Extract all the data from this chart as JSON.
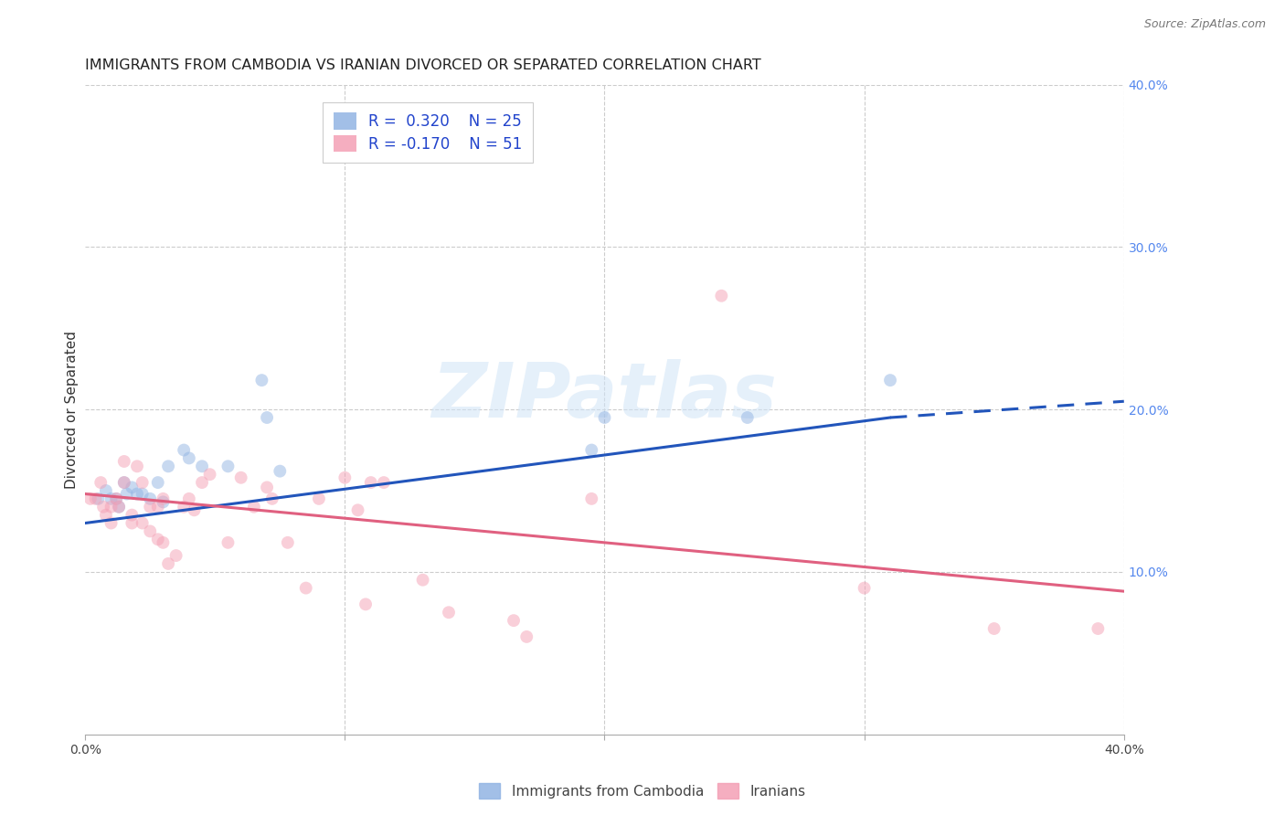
{
  "title": "IMMIGRANTS FROM CAMBODIA VS IRANIAN DIVORCED OR SEPARATED CORRELATION CHART",
  "source": "Source: ZipAtlas.com",
  "ylabel": "Divorced or Separated",
  "xlim": [
    0.0,
    0.4
  ],
  "ylim": [
    0.0,
    0.4
  ],
  "xtick_vals": [
    0.0,
    0.1,
    0.2,
    0.3,
    0.4
  ],
  "xtick_show": [
    0.0,
    0.4
  ],
  "ytick_vals_right": [
    0.1,
    0.2,
    0.3,
    0.4
  ],
  "ytick_labels_right": [
    "10.0%",
    "20.0%",
    "30.0%",
    "40.0%"
  ],
  "watermark": "ZIPatlas",
  "legend_label_blue": "Immigrants from Cambodia",
  "legend_label_pink": "Iranians",
  "blue_color": "#92b4e3",
  "pink_color": "#f4a0b5",
  "blue_line_color": "#2255bb",
  "pink_line_color": "#e06080",
  "blue_scatter": [
    [
      0.005,
      0.145
    ],
    [
      0.008,
      0.15
    ],
    [
      0.01,
      0.145
    ],
    [
      0.012,
      0.145
    ],
    [
      0.013,
      0.14
    ],
    [
      0.015,
      0.155
    ],
    [
      0.016,
      0.148
    ],
    [
      0.018,
      0.152
    ],
    [
      0.02,
      0.148
    ],
    [
      0.022,
      0.148
    ],
    [
      0.025,
      0.145
    ],
    [
      0.028,
      0.155
    ],
    [
      0.03,
      0.143
    ],
    [
      0.032,
      0.165
    ],
    [
      0.038,
      0.175
    ],
    [
      0.04,
      0.17
    ],
    [
      0.045,
      0.165
    ],
    [
      0.055,
      0.165
    ],
    [
      0.068,
      0.218
    ],
    [
      0.07,
      0.195
    ],
    [
      0.075,
      0.162
    ],
    [
      0.195,
      0.175
    ],
    [
      0.2,
      0.195
    ],
    [
      0.255,
      0.195
    ],
    [
      0.31,
      0.218
    ]
  ],
  "pink_scatter": [
    [
      0.002,
      0.145
    ],
    [
      0.004,
      0.145
    ],
    [
      0.006,
      0.155
    ],
    [
      0.007,
      0.14
    ],
    [
      0.008,
      0.135
    ],
    [
      0.01,
      0.13
    ],
    [
      0.01,
      0.14
    ],
    [
      0.012,
      0.145
    ],
    [
      0.013,
      0.14
    ],
    [
      0.015,
      0.168
    ],
    [
      0.015,
      0.155
    ],
    [
      0.018,
      0.13
    ],
    [
      0.018,
      0.135
    ],
    [
      0.02,
      0.165
    ],
    [
      0.022,
      0.155
    ],
    [
      0.022,
      0.13
    ],
    [
      0.025,
      0.14
    ],
    [
      0.025,
      0.125
    ],
    [
      0.028,
      0.14
    ],
    [
      0.028,
      0.12
    ],
    [
      0.03,
      0.145
    ],
    [
      0.03,
      0.118
    ],
    [
      0.032,
      0.105
    ],
    [
      0.035,
      0.11
    ],
    [
      0.038,
      0.14
    ],
    [
      0.04,
      0.145
    ],
    [
      0.042,
      0.138
    ],
    [
      0.045,
      0.155
    ],
    [
      0.048,
      0.16
    ],
    [
      0.055,
      0.118
    ],
    [
      0.06,
      0.158
    ],
    [
      0.065,
      0.14
    ],
    [
      0.07,
      0.152
    ],
    [
      0.072,
      0.145
    ],
    [
      0.078,
      0.118
    ],
    [
      0.085,
      0.09
    ],
    [
      0.09,
      0.145
    ],
    [
      0.1,
      0.158
    ],
    [
      0.105,
      0.138
    ],
    [
      0.108,
      0.08
    ],
    [
      0.11,
      0.155
    ],
    [
      0.115,
      0.155
    ],
    [
      0.13,
      0.095
    ],
    [
      0.14,
      0.075
    ],
    [
      0.165,
      0.07
    ],
    [
      0.17,
      0.06
    ],
    [
      0.195,
      0.145
    ],
    [
      0.245,
      0.27
    ],
    [
      0.3,
      0.09
    ],
    [
      0.35,
      0.065
    ],
    [
      0.39,
      0.065
    ]
  ],
  "blue_line_solid": {
    "x0": 0.0,
    "y0": 0.13,
    "x1": 0.31,
    "y1": 0.195
  },
  "blue_line_dashed": {
    "x0": 0.31,
    "y0": 0.195,
    "x1": 0.4,
    "y1": 0.205
  },
  "pink_line": {
    "x0": 0.0,
    "y0": 0.148,
    "x1": 0.4,
    "y1": 0.088
  },
  "grid_color": "#cccccc",
  "background_color": "#ffffff",
  "title_fontsize": 11.5,
  "axis_label_fontsize": 11,
  "tick_fontsize": 10,
  "scatter_size": 100,
  "scatter_alpha": 0.5,
  "line_width": 2.2
}
